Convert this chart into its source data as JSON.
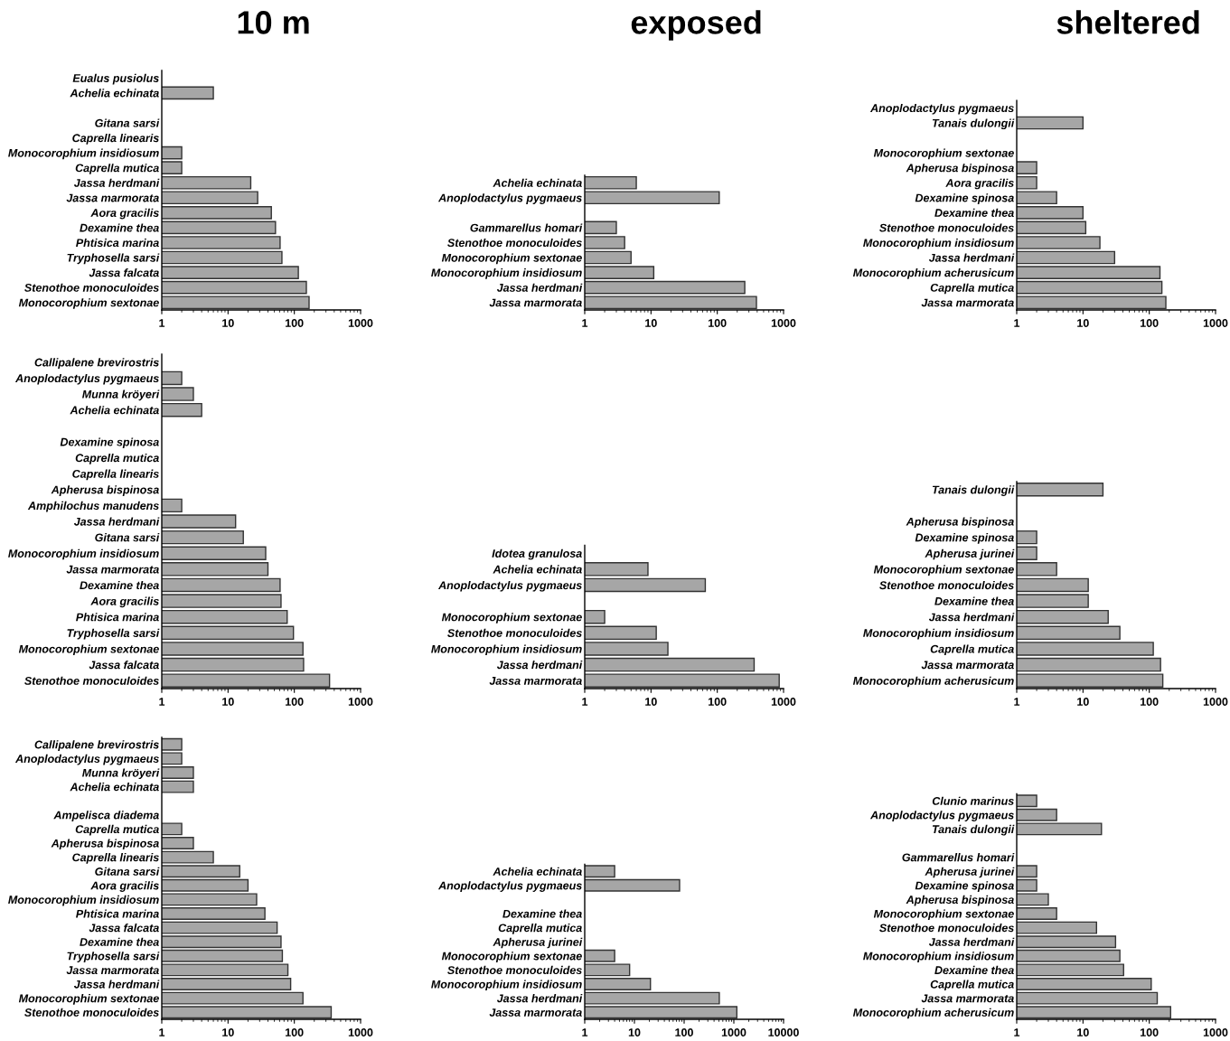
{
  "chart_data": [
    {
      "type": "bar",
      "orientation": "horizontal",
      "log": "x",
      "title": "10 m",
      "color": "#a6a6a6",
      "xlim": [
        1,
        1000
      ],
      "xticks": [
        1,
        10,
        100,
        1000
      ],
      "categories": [
        "Eualus pusiolus",
        "Achelia echinata",
        null,
        "Gitana sarsi",
        "Caprella linearis",
        "Monocorophium insidiosum",
        "Caprella mutica",
        "Jassa herdmani",
        "Jassa marmorata",
        "Aora gracilis",
        "Dexamine thea",
        "Phtisica marina",
        "Tryphosella sarsi",
        "Jassa falcata",
        "Stenothoe monoculoides",
        "Monocorophium sextonae"
      ],
      "values": [
        null,
        6,
        null,
        null,
        null,
        2,
        2,
        22,
        28,
        45,
        52,
        61,
        65,
        115,
        152,
        167
      ]
    },
    {
      "type": "bar",
      "orientation": "horizontal",
      "log": "x",
      "title": "exposed",
      "color": "#a6a6a6",
      "xlim": [
        1,
        1000
      ],
      "xticks": [
        1,
        10,
        100,
        1000
      ],
      "categories": [
        "Achelia echinata",
        "Anoplodactylus pygmaeus",
        null,
        "Gammarellus homari",
        "Stenothoe monoculoides",
        "Monocorophium sextonae",
        "Monocorophium insidiosum",
        "Jassa herdmani",
        "Jassa marmorata"
      ],
      "values": [
        6,
        107,
        null,
        3,
        4,
        5,
        11,
        260,
        390
      ]
    },
    {
      "type": "bar",
      "orientation": "horizontal",
      "log": "x",
      "title": "sheltered",
      "color": "#a6a6a6",
      "xlim": [
        1,
        1000
      ],
      "xticks": [
        1,
        10,
        100,
        1000
      ],
      "categories": [
        "Anoplodactylus pygmaeus",
        "Tanais dulongii",
        null,
        "Monocorophium sextonae",
        "Apherusa bispinosa",
        "Aora gracilis",
        "Dexamine spinosa",
        "Dexamine thea",
        "Stenothoe monoculoides",
        "Monocorophium insidiosum",
        "Jassa herdmani",
        "Monocorophium acherusicum",
        "Caprella mutica",
        "Jassa marmorata"
      ],
      "values": [
        null,
        10,
        null,
        null,
        2,
        2,
        4,
        10,
        11,
        18,
        30,
        145,
        155,
        178
      ]
    },
    {
      "type": "bar",
      "orientation": "horizontal",
      "log": "x",
      "color": "#a6a6a6",
      "xlim": [
        1,
        1000
      ],
      "xticks": [
        1,
        10,
        100,
        1000
      ],
      "categories": [
        "Callipalene brevirostris",
        "Anoplodactylus pygmaeus",
        "Munna kröyeri",
        "Achelia echinata",
        null,
        "Dexamine spinosa",
        "Caprella mutica",
        "Caprella linearis",
        "Apherusa bispinosa",
        "Amphilochus manudens",
        "Jassa herdmani",
        "Gitana sarsi",
        "Monocorophium insidiosum",
        "Jassa marmorata",
        "Dexamine thea",
        "Aora gracilis",
        "Phtisica marina",
        "Tryphosella sarsi",
        "Monocorophium sextonae",
        "Jassa falcata",
        "Stenothoe monoculoides"
      ],
      "values": [
        null,
        2,
        3,
        4,
        null,
        null,
        null,
        null,
        null,
        2,
        13,
        17,
        37,
        40,
        61,
        63,
        78,
        97,
        135,
        138,
        340
      ]
    },
    {
      "type": "bar",
      "orientation": "horizontal",
      "log": "x",
      "color": "#a6a6a6",
      "xlim": [
        1,
        1000
      ],
      "xticks": [
        1,
        10,
        100,
        1000
      ],
      "categories": [
        "Idotea granulosa",
        "Achelia echinata",
        "Anoplodactylus pygmaeus",
        null,
        "Monocorophium sextonae",
        "Stenothoe monoculoides",
        "Monocorophium insidiosum",
        "Jassa herdmani",
        "Jassa marmorata"
      ],
      "values": [
        null,
        9,
        66,
        null,
        2,
        12,
        18,
        360,
        860
      ]
    },
    {
      "type": "bar",
      "orientation": "horizontal",
      "log": "x",
      "color": "#a6a6a6",
      "xlim": [
        1,
        1000
      ],
      "xticks": [
        1,
        10,
        100,
        1000
      ],
      "categories": [
        "Tanais dulongii",
        null,
        "Apherusa bispinosa",
        "Dexamine spinosa",
        "Apherusa jurinei",
        "Monocorophium sextonae",
        "Stenothoe monoculoides",
        "Dexamine thea",
        "Jassa herdmani",
        "Monocorophium insidiosum",
        "Caprella mutica",
        "Jassa marmorata",
        "Monocorophium acherusicum"
      ],
      "values": [
        20,
        null,
        null,
        2,
        2,
        4,
        12,
        12,
        24,
        36,
        115,
        148,
        160
      ]
    },
    {
      "type": "bar",
      "orientation": "horizontal",
      "log": "x",
      "color": "#a6a6a6",
      "xlim": [
        1,
        1000
      ],
      "xticks": [
        1,
        10,
        100,
        1000
      ],
      "categories": [
        "Callipalene brevirostris",
        "Anoplodactylus pygmaeus",
        "Munna kröyeri",
        "Achelia echinata",
        null,
        "Ampelisca diadema",
        "Caprella mutica",
        "Apherusa bispinosa",
        "Caprella linearis",
        "Gitana sarsi",
        "Aora gracilis",
        "Monocorophium insidiosum",
        "Phtisica marina",
        "Jassa falcata",
        "Dexamine thea",
        "Tryphosella sarsi",
        "Jassa marmorata",
        "Jassa herdmani",
        "Monocorophium sextonae",
        "Stenothoe monoculoides"
      ],
      "values": [
        2,
        2,
        3,
        3,
        null,
        null,
        2,
        3,
        6,
        15,
        20,
        27,
        36,
        55,
        63,
        66,
        80,
        88,
        135,
        360
      ]
    },
    {
      "type": "bar",
      "orientation": "horizontal",
      "log": "x",
      "color": "#a6a6a6",
      "xlim": [
        1,
        10000
      ],
      "xticks": [
        1,
        10,
        100,
        1000,
        10000
      ],
      "categories": [
        "Achelia echinata",
        "Anoplodactylus pygmaeus",
        null,
        "Dexamine thea",
        "Caprella mutica",
        "Apherusa jurinei",
        "Monocorophium sextonae",
        "Stenothoe monoculoides",
        "Monocorophium insidiosum",
        "Jassa herdmani",
        "Jassa marmorata"
      ],
      "values": [
        4,
        81,
        null,
        null,
        null,
        null,
        4,
        8,
        21,
        510,
        1150
      ]
    },
    {
      "type": "bar",
      "orientation": "horizontal",
      "log": "x",
      "color": "#a6a6a6",
      "xlim": [
        1,
        1000
      ],
      "xticks": [
        1,
        10,
        100,
        1000
      ],
      "categories": [
        "Clunio marinus",
        "Anoplodactylus pygmaeus",
        "Tanais dulongii",
        null,
        "Gammarellus homari",
        "Apherusa jurinei",
        "Dexamine spinosa",
        "Apherusa bispinosa",
        "Monocorophium sextonae",
        "Stenothoe monoculoides",
        "Jassa herdmani",
        "Monocorophium insidiosum",
        "Dexamine thea",
        "Caprella mutica",
        "Jassa marmorata",
        "Monocorophium acherusicum"
      ],
      "values": [
        2,
        4,
        19,
        null,
        null,
        2,
        2,
        3,
        4,
        16,
        31,
        36,
        41,
        107,
        132,
        210
      ]
    }
  ]
}
